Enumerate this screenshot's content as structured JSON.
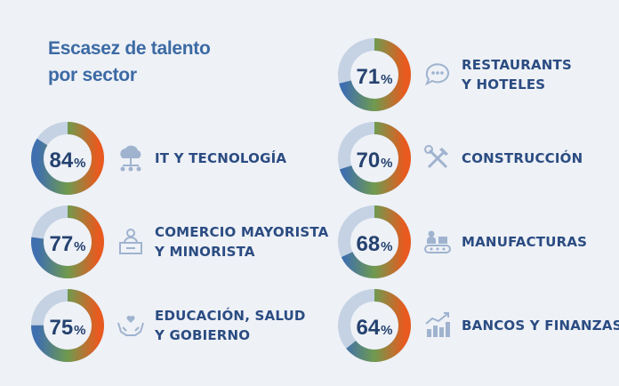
{
  "title": {
    "line1": "Escasez de talento",
    "line2": "por sector"
  },
  "colors": {
    "background": "#eef1f6",
    "track": "#c5d2e4",
    "gradient_start": "#3f6fae",
    "gradient_mid": "#6f9a4f",
    "gradient_end": "#e85a1f",
    "text": "#2b4c82"
  },
  "chart_data": {
    "type": "donut",
    "title": "Escasez de talento por sector",
    "categories": [
      "IT Y TECNOLOGÍA",
      "COMERCIO MAYORISTA Y MINORISTA",
      "EDUCACIÓN, SALUD Y GOBIERNO",
      "RESTAURANTS Y HOTELES",
      "CONSTRUCCIÓN",
      "MANUFACTURAS",
      "BANCOS Y FINANZAS"
    ],
    "values": [
      84,
      77,
      75,
      71,
      70,
      68,
      64
    ],
    "unit": "%",
    "items": [
      {
        "value": 84,
        "label_lines": [
          "IT Y TECNOLOGÍA"
        ],
        "icon": "cloud-network-icon"
      },
      {
        "value": 77,
        "label_lines": [
          "COMERCIO MAYORISTA",
          "Y MINORISTA"
        ],
        "icon": "shopkeeper-icon"
      },
      {
        "value": 75,
        "label_lines": [
          "EDUCACIÓN, SALUD",
          "Y GOBIERNO"
        ],
        "icon": "heart-hands-icon"
      },
      {
        "value": 71,
        "label_lines": [
          "RESTAURANTS",
          "Y HOTELES"
        ],
        "icon": "chat-bubble-icon"
      },
      {
        "value": 70,
        "label_lines": [
          "CONSTRUCCIÓN"
        ],
        "icon": "tools-icon"
      },
      {
        "value": 68,
        "label_lines": [
          "MANUFACTURAS"
        ],
        "icon": "conveyor-icon"
      },
      {
        "value": 64,
        "label_lines": [
          "BANCOS Y FINANZAS"
        ],
        "icon": "growth-chart-icon"
      }
    ]
  }
}
